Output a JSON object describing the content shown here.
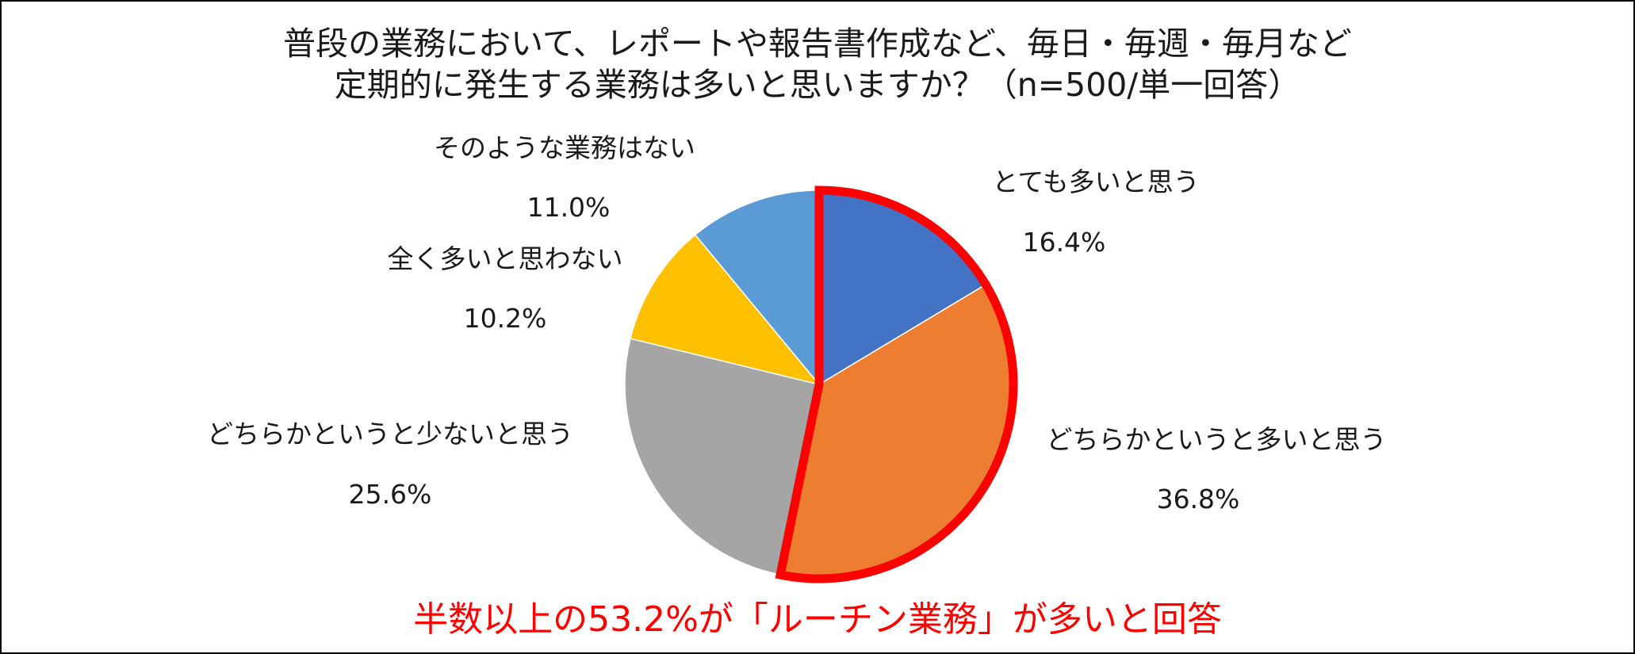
{
  "title": {
    "line1": "普段の業務において、レポートや報告書作成など、毎日・毎週・毎月など",
    "line2": "定期的に発生する業務は多いと思いますか？（n=500/単一回答）"
  },
  "chart_data": {
    "type": "pie",
    "start_angle_deg": 0,
    "direction": "clockwise",
    "slices": [
      {
        "key": "very-many",
        "label": "とても多いと思う",
        "value": 16.4,
        "value_label": "16.4%",
        "color": "#4472C4",
        "highlighted": true
      },
      {
        "key": "somewhat-many",
        "label": "どちらかというと多いと思う",
        "value": 36.8,
        "value_label": "36.8%",
        "color": "#ED7D31",
        "highlighted": true
      },
      {
        "key": "somewhat-few",
        "label": "どちらかというと少ないと思う",
        "value": 25.6,
        "value_label": "25.6%",
        "color": "#A5A5A5",
        "highlighted": false
      },
      {
        "key": "not-many-at-all",
        "label": "全く多いと思わない",
        "value": 10.2,
        "value_label": "10.2%",
        "color": "#FFC000",
        "highlighted": false
      },
      {
        "key": "none",
        "label": "そのような業務はない",
        "value": 11.0,
        "value_label": "11.0%",
        "color": "#5B9BD5",
        "highlighted": false
      }
    ],
    "highlight_color": "#FF0000"
  },
  "footer": {
    "note": "半数以上の53.2%が「ルーチン業務」が多いと回答",
    "color": "#FF0000"
  }
}
